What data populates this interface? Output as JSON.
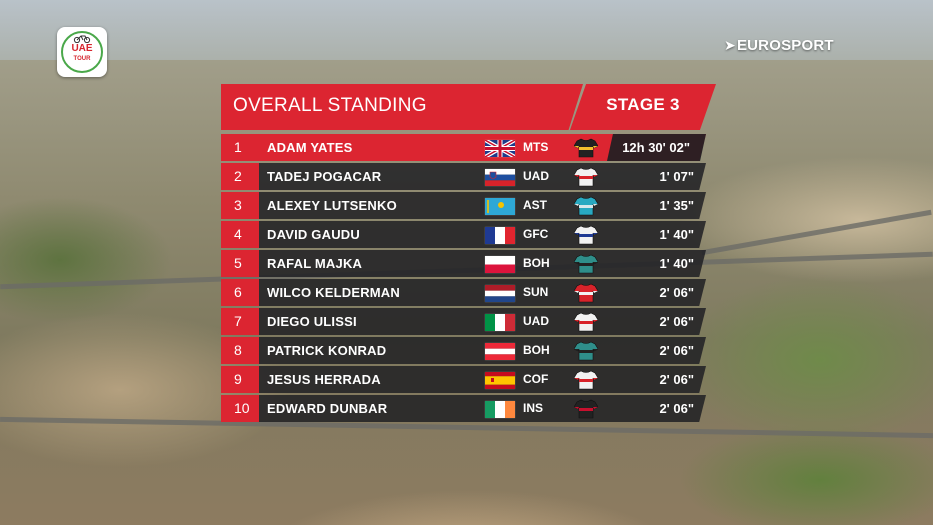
{
  "overlay": {
    "race_logo": {
      "line1": "UAE",
      "line2": "TOUR"
    },
    "broadcaster": "EUROSPORT"
  },
  "standings": {
    "title": "OVERALL STANDING",
    "stage": "STAGE 3",
    "rows": [
      {
        "pos": "1",
        "name": "ADAM YATES",
        "flag": "gb",
        "team": "MTS",
        "jersey": "black-yellow",
        "time": "12h 30' 02\""
      },
      {
        "pos": "2",
        "name": "TADEJ POGACAR",
        "flag": "si",
        "team": "UAD",
        "jersey": "white-red",
        "time": "1' 07\""
      },
      {
        "pos": "3",
        "name": "ALEXEY LUTSENKO",
        "flag": "kz",
        "team": "AST",
        "jersey": "turquoise",
        "time": "1' 35\""
      },
      {
        "pos": "4",
        "name": "DAVID GAUDU",
        "flag": "fr",
        "team": "GFC",
        "jersey": "blue-white-red",
        "time": "1' 40\""
      },
      {
        "pos": "5",
        "name": "RAFAL MAJKA",
        "flag": "pl",
        "team": "BOH",
        "jersey": "teal-black",
        "time": "1' 40\""
      },
      {
        "pos": "6",
        "name": "WILCO KELDERMAN",
        "flag": "nl",
        "team": "SUN",
        "jersey": "red-white",
        "time": "2' 06\""
      },
      {
        "pos": "7",
        "name": "DIEGO ULISSI",
        "flag": "it",
        "team": "UAD",
        "jersey": "white-red",
        "time": "2' 06\""
      },
      {
        "pos": "8",
        "name": "PATRICK KONRAD",
        "flag": "at",
        "team": "BOH",
        "jersey": "teal-black",
        "time": "2' 06\""
      },
      {
        "pos": "9",
        "name": "JESUS HERRADA",
        "flag": "es",
        "team": "COF",
        "jersey": "white-red",
        "time": "2' 06\""
      },
      {
        "pos": "10",
        "name": "EDWARD DUNBAR",
        "flag": "ie",
        "team": "INS",
        "jersey": "black-red",
        "time": "2' 06\""
      }
    ]
  },
  "colors": {
    "accent_red": "#dc2531",
    "row_dark": "#1e1e22"
  }
}
